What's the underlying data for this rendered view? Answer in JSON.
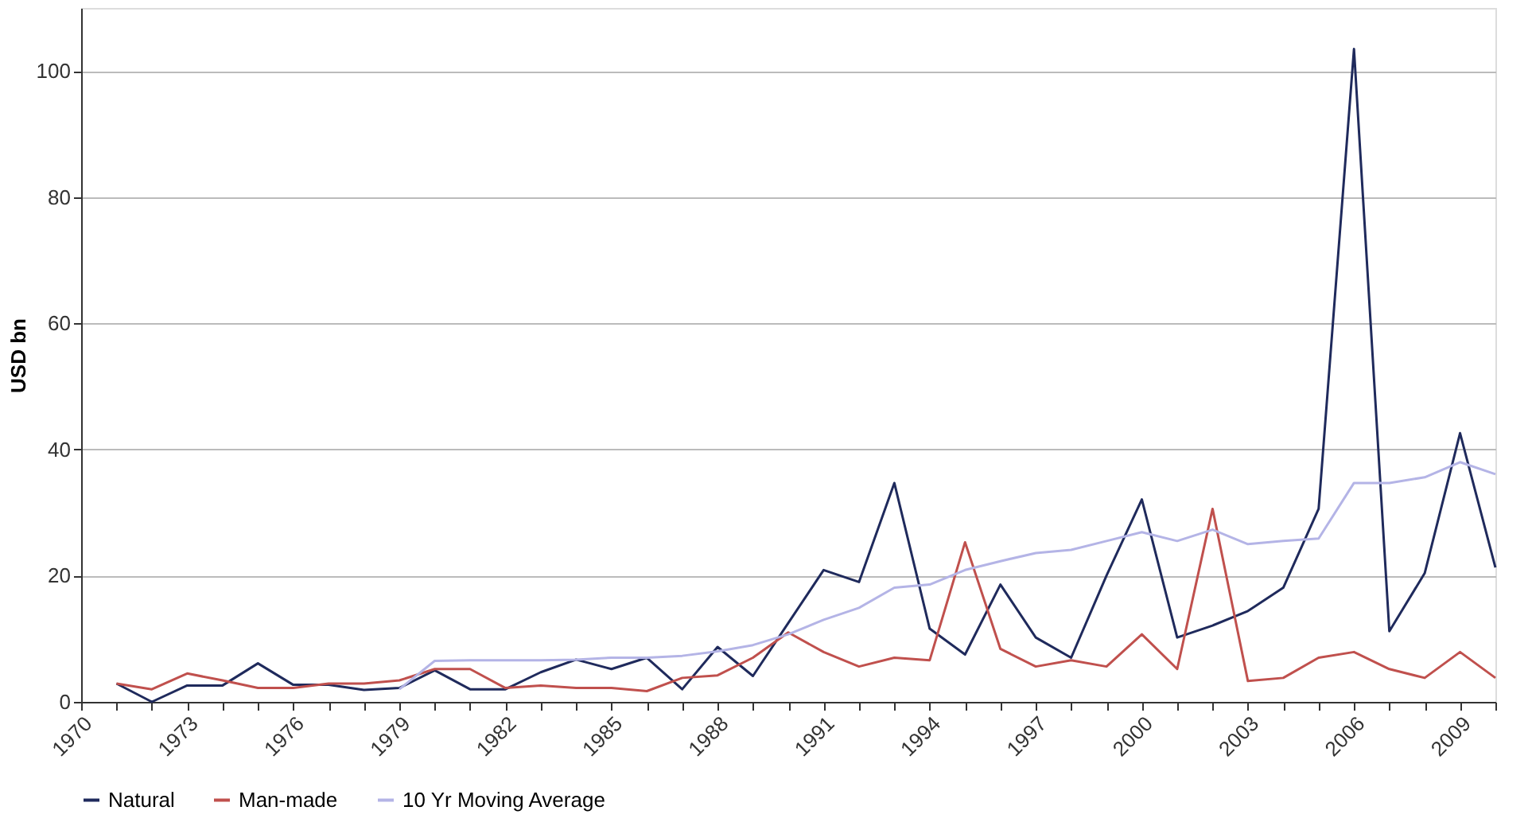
{
  "chart_data": {
    "type": "line",
    "ylabel": "USD bn",
    "x": [
      1971,
      1972,
      1973,
      1974,
      1975,
      1976,
      1977,
      1978,
      1979,
      1980,
      1981,
      1982,
      1983,
      1984,
      1985,
      1986,
      1987,
      1988,
      1989,
      1990,
      1991,
      1992,
      1993,
      1994,
      1995,
      1996,
      1997,
      1998,
      1999,
      2000,
      2001,
      2002,
      2003,
      2004,
      2005,
      2006,
      2007,
      2008,
      2009,
      2010
    ],
    "series": [
      {
        "name": "Natural",
        "color": "#1f2a5c",
        "values": [
          2.9,
          0,
          2.6,
          2.6,
          6.1,
          2.7,
          2.7,
          1.9,
          2.2,
          5.0,
          2.0,
          2.0,
          4.7,
          6.7,
          5.2,
          7.0,
          2.0,
          8.7,
          4.1,
          12.5,
          20.9,
          19.0,
          34.7,
          11.6,
          7.5,
          18.6,
          10.2,
          7.0,
          20,
          32.1,
          10.2,
          12.1,
          14.4,
          18.1,
          30.6,
          103.5,
          11.2,
          20.4,
          42.6,
          21.3
        ]
      },
      {
        "name": "Man-made",
        "color": "#c0504d",
        "values": [
          2.9,
          2.0,
          4.5,
          3.4,
          2.2,
          2.2,
          2.9,
          2.9,
          3.4,
          5.2,
          5.2,
          2.2,
          2.6,
          2.2,
          2.2,
          1.7,
          3.8,
          4.2,
          7.0,
          11.0,
          7.9,
          5.6,
          7.0,
          6.6,
          25.3,
          8.4,
          5.6,
          6.6,
          5.6,
          10.7,
          5.2,
          30.6,
          3.3,
          3.8,
          7.0,
          7.9,
          5.2,
          3.8,
          7.9,
          3.8
        ]
      },
      {
        "name": "10 Yr Moving Average",
        "color": "#b4b4e6",
        "values": [
          null,
          null,
          null,
          null,
          null,
          null,
          null,
          null,
          2.0,
          6.5,
          6.6,
          6.6,
          6.6,
          6.7,
          7.0,
          7.0,
          7.3,
          8.0,
          9.0,
          10.7,
          13.0,
          14.9,
          18.1,
          18.6,
          20.9,
          22.3,
          23.6,
          24.1,
          25.5,
          26.9,
          25.5,
          27.3,
          25.0,
          25.5,
          25.9,
          34.7,
          34.7,
          35.6,
          38.0,
          36.1
        ]
      }
    ],
    "xlim": [
      1970,
      2010
    ],
    "xticks": [
      1970,
      {
        "value": 1971,
        "label": null
      },
      {
        "value": 1972,
        "label": null
      },
      1973,
      {
        "value": 1974,
        "label": null
      },
      {
        "value": 1975,
        "label": null
      },
      1976,
      {
        "value": 1977,
        "label": null
      },
      {
        "value": 1978,
        "label": null
      },
      1979,
      {
        "value": 1980,
        "label": null
      },
      {
        "value": 1981,
        "label": null
      },
      1982,
      {
        "value": 1983,
        "label": null
      },
      {
        "value": 1984,
        "label": null
      },
      1985,
      {
        "value": 1986,
        "label": null
      },
      {
        "value": 1987,
        "label": null
      },
      1988,
      {
        "value": 1989,
        "label": null
      },
      {
        "value": 1990,
        "label": null
      },
      1991,
      {
        "value": 1992,
        "label": null
      },
      {
        "value": 1993,
        "label": null
      },
      1994,
      {
        "value": 1995,
        "label": null
      },
      {
        "value": 1996,
        "label": null
      },
      1997,
      {
        "value": 1998,
        "label": null
      },
      {
        "value": 1999,
        "label": null
      },
      2000,
      {
        "value": 2001,
        "label": null
      },
      {
        "value": 2002,
        "label": null
      },
      2003,
      {
        "value": 2004,
        "label": null
      },
      {
        "value": 2005,
        "label": null
      },
      2006,
      {
        "value": 2007,
        "label": null
      },
      {
        "value": 2008,
        "label": null
      },
      2009,
      {
        "value": 2010,
        "label": null
      }
    ],
    "ylim": [
      0,
      110
    ],
    "yticks": [
      0,
      20,
      40,
      60,
      80,
      100
    ],
    "grid": "y",
    "legend": "bottom",
    "marker": "none",
    "line_style": "solid"
  }
}
